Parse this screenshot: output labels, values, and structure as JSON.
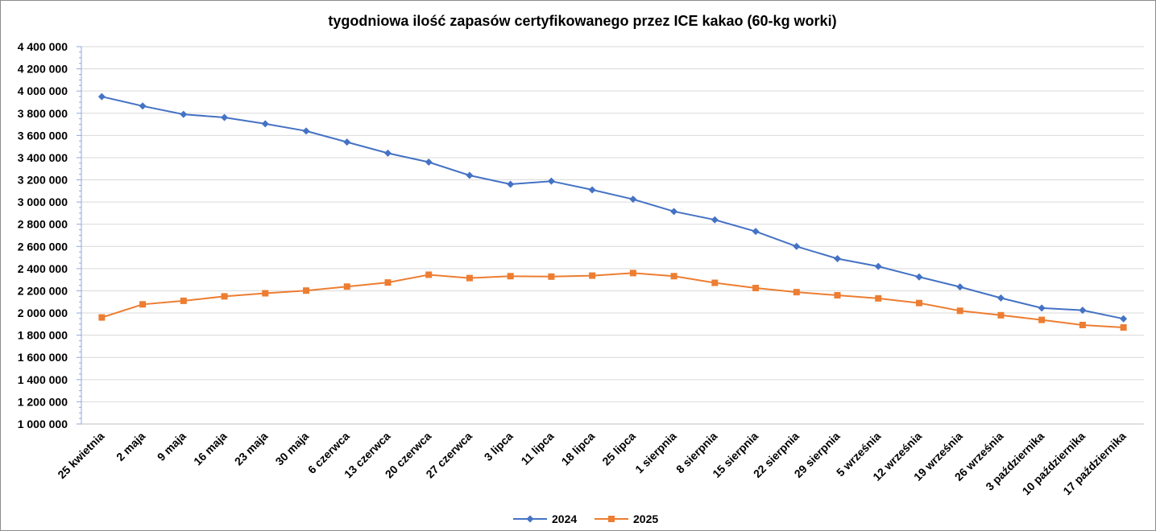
{
  "chart_data": {
    "type": "line",
    "title": "tygodniowa ilość zapasów certyfikowanego przez ICE kakao (60-kg worki)",
    "xlabel": "",
    "ylabel": "",
    "ylim": [
      1000000,
      4400000
    ],
    "y_ticks": [
      1000000,
      1200000,
      1400000,
      1600000,
      1800000,
      2000000,
      2200000,
      2400000,
      2600000,
      2800000,
      3000000,
      3200000,
      3400000,
      3600000,
      3800000,
      4000000,
      4200000,
      4400000
    ],
    "y_tick_labels": [
      "1 000 000",
      "1 200 000",
      "1 400 000",
      "1 600 000",
      "1 800 000",
      "2 000 000",
      "2 200 000",
      "2 400 000",
      "2 600 000",
      "2 800 000",
      "3 000 000",
      "3 200 000",
      "3 400 000",
      "3 600 000",
      "3 800 000",
      "4 000 000",
      "4 200 000",
      "4 400 000"
    ],
    "grid": true,
    "legend_position": "bottom",
    "categories": [
      "25 kwietnia",
      "2 maja",
      "9 maja",
      "16 maja",
      "23 maja",
      "30 maja",
      "6 czerwca",
      "13 czerwca",
      "20 czerwca",
      "27 czerwca",
      "3 lipca",
      "11 lipca",
      "18 lipca",
      "25 lipca",
      "1 sierpnia",
      "8 sierpnia",
      "15 sierpnia",
      "22 sierpnia",
      "29 sierpnia",
      "5 września",
      "12 września",
      "19 września",
      "26 września",
      "3 października",
      "10 października",
      "17 października"
    ],
    "series": [
      {
        "name": "2024",
        "color": "#4472c4",
        "marker": "diamond",
        "values": [
          3950000,
          3865000,
          3790000,
          3762000,
          3705000,
          3640000,
          3540000,
          3440000,
          3360000,
          3240000,
          3160000,
          3188000,
          3110000,
          3025000,
          2915000,
          2840000,
          2735000,
          2600000,
          2490000,
          2420000,
          2325000,
          2235000,
          2135000,
          2045000,
          2025000,
          1948000
        ]
      },
      {
        "name": "2025",
        "color": "#ed7d31",
        "marker": "square",
        "values": [
          1960000,
          2078000,
          2110000,
          2150000,
          2178000,
          2202000,
          2238000,
          2275000,
          2345000,
          2315000,
          2332000,
          2328000,
          2337000,
          2360000,
          2332000,
          2272000,
          2225000,
          2188000,
          2160000,
          2132000,
          2090000,
          2020000,
          1980000,
          1938000,
          1892000,
          1870000
        ]
      }
    ]
  }
}
